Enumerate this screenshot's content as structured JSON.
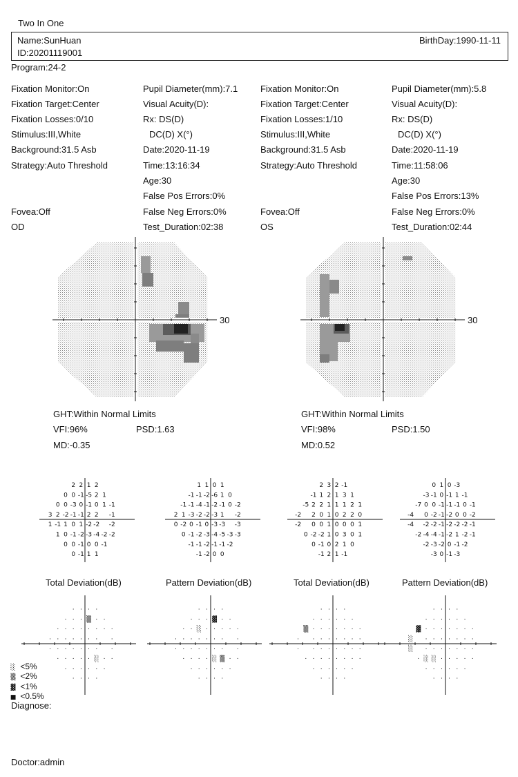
{
  "report_title": "Two In One",
  "patient": {
    "name": "Name:SunHuan",
    "id": "ID:20201119001",
    "birthday": "BirthDay:1990-11-11"
  },
  "program": "Program:24-2",
  "eyes": [
    {
      "eye": "OD",
      "fixation_monitor": "Fixation Monitor:On",
      "fixation_target": "Fixation Target:Center",
      "fixation_losses": "Fixation Losses:0/10",
      "stimulus": "Stimulus:III,White",
      "background": "Background:31.5 Asb",
      "strategy": "Strategy:Auto Threshold",
      "fovea": "Fovea:Off",
      "pupil_diameter": "Pupil Diameter(mm):7.1",
      "visual_acuity": "Visual Acuity(D):",
      "rx": "Rx:  DS(D)",
      "dc": "DC(D)  X(°)",
      "date": "Date:2020-11-19",
      "time": "Time:13:16:34",
      "age": "Age:30",
      "false_pos": "False Pos Errors:0%",
      "false_neg": "False Neg Errors:0%",
      "test_duration": "Test_Duration:02:38",
      "axis_label": "30",
      "ght": "GHT:Within Normal Limits",
      "vfi": "VFI:96%",
      "psd": "PSD:1.63",
      "md": "MD:-0.35",
      "total_deviation_title": "Total Deviation(dB)",
      "pattern_deviation_title": "Pattern Deviation(dB)",
      "total_deviation": [
        [
          "2",
          "2",
          "1",
          "2"
        ],
        [
          "0",
          "0",
          "-1",
          "-5",
          "2",
          "1"
        ],
        [
          "0",
          "0",
          "-3",
          "0",
          "-1",
          "0",
          "1",
          "-1"
        ],
        [
          "3",
          "2",
          "-2",
          "-1",
          "-1",
          "2",
          "2",
          "",
          "-1"
        ],
        [
          "1",
          "-1",
          "1",
          "0",
          "1",
          "-2",
          "-2",
          "",
          "-2"
        ],
        [
          "1",
          "0",
          "-1",
          "-2",
          "-3",
          "-4",
          "-2",
          "-2"
        ],
        [
          "0",
          "0",
          "-1",
          "0",
          "0",
          "-1"
        ],
        [
          "0",
          "-1",
          "1",
          "1"
        ]
      ],
      "pattern_deviation": [
        [
          "1",
          "1",
          "0",
          "1"
        ],
        [
          "-1",
          "-1",
          "-2",
          "-6",
          "1",
          "0"
        ],
        [
          "-1",
          "-1",
          "-4",
          "-1",
          "-2",
          "-1",
          "0",
          "-2"
        ],
        [
          "2",
          "1",
          "-3",
          "-2",
          "-2",
          "-3",
          "1",
          "",
          "-2"
        ],
        [
          "0",
          "-2",
          "0",
          "-1",
          "0",
          "-3",
          "-3",
          "",
          "-3"
        ],
        [
          "0",
          "-1",
          "-2",
          "-3",
          "-4",
          "-5",
          "-3",
          "-3"
        ],
        [
          "-1",
          "-1",
          "-2",
          "-1",
          "-1",
          "-2"
        ],
        [
          "-1",
          "-2",
          "0",
          "0"
        ]
      ]
    },
    {
      "eye": "OS",
      "fixation_monitor": "Fixation Monitor:On",
      "fixation_target": "Fixation Target:Center",
      "fixation_losses": "Fixation Losses:1/10",
      "stimulus": "Stimulus:III,White",
      "background": "Background:31.5 Asb",
      "strategy": "Strategy:Auto Threshold",
      "fovea": "Fovea:Off",
      "pupil_diameter": "Pupil Diameter(mm):5.8",
      "visual_acuity": "Visual Acuity(D):",
      "rx": "Rx:  DS(D)",
      "dc": "DC(D)  X(°)",
      "date": "Date:2020-11-19",
      "time": "Time:11:58:06",
      "age": "Age:30",
      "false_pos": "False Pos Errors:13%",
      "false_neg": "False Neg Errors:0%",
      "test_duration": "Test_Duration:02:44",
      "axis_label": "30",
      "ght": "GHT:Within Normal Limits",
      "vfi": "VFI:98%",
      "psd": "PSD:1.50",
      "md": "MD:0.52",
      "total_deviation_title": "Total Deviation(dB)",
      "pattern_deviation_title": "Pattern Deviation(dB)",
      "total_deviation": [
        [
          "2",
          "3",
          "2",
          "-1"
        ],
        [
          "-1",
          "1",
          "2",
          "1",
          "3",
          "1"
        ],
        [
          "-5",
          "2",
          "2",
          "1",
          "1",
          "1",
          "2",
          "1"
        ],
        [
          "-2",
          "",
          "2",
          "0",
          "1",
          "0",
          "2",
          "2",
          "0"
        ],
        [
          "-2",
          "",
          "0",
          "0",
          "1",
          "0",
          "0",
          "0",
          "1"
        ],
        [
          "0",
          "-2",
          "-2",
          "1",
          "0",
          "3",
          "0",
          "1"
        ],
        [
          "0",
          "-1",
          "0",
          "2",
          "1",
          "0"
        ],
        [
          "-1",
          "2",
          "1",
          "-1"
        ]
      ],
      "pattern_deviation": [
        [
          "0",
          "1",
          "0",
          "-3"
        ],
        [
          "-3",
          "-1",
          "0",
          "-1",
          "1",
          "-1"
        ],
        [
          "-7",
          "0",
          "0",
          "-1",
          "-1",
          "-1",
          "0",
          "-1"
        ],
        [
          "-4",
          "",
          "0",
          "-2",
          "-1",
          "-2",
          "0",
          "0",
          "-2"
        ],
        [
          "-4",
          "",
          "-2",
          "-2",
          "-1",
          "-2",
          "-2",
          "-2",
          "-1"
        ],
        [
          "-2",
          "-4",
          "-4",
          "-1",
          "-2",
          "1",
          "-2",
          "-1"
        ],
        [
          "-2",
          "-3",
          "-2",
          "0",
          "-1",
          "-2"
        ],
        [
          "-3",
          "0",
          "-1",
          "-3"
        ]
      ]
    }
  ],
  "legend": [
    {
      "symbol": "░",
      "label": "<5%"
    },
    {
      "symbol": "▒",
      "label": "<2%"
    },
    {
      "symbol": "▓",
      "label": "<1%"
    },
    {
      "symbol": "■",
      "label": "<0.5%"
    }
  ],
  "diagnose": "Diagnose:",
  "doctor": "Doctor:admin",
  "colors": {
    "text": "#111111",
    "greyscale_light": "#bdbdbd",
    "greyscale_mid": "#8a8a8a",
    "greyscale_dark": "#444444"
  }
}
